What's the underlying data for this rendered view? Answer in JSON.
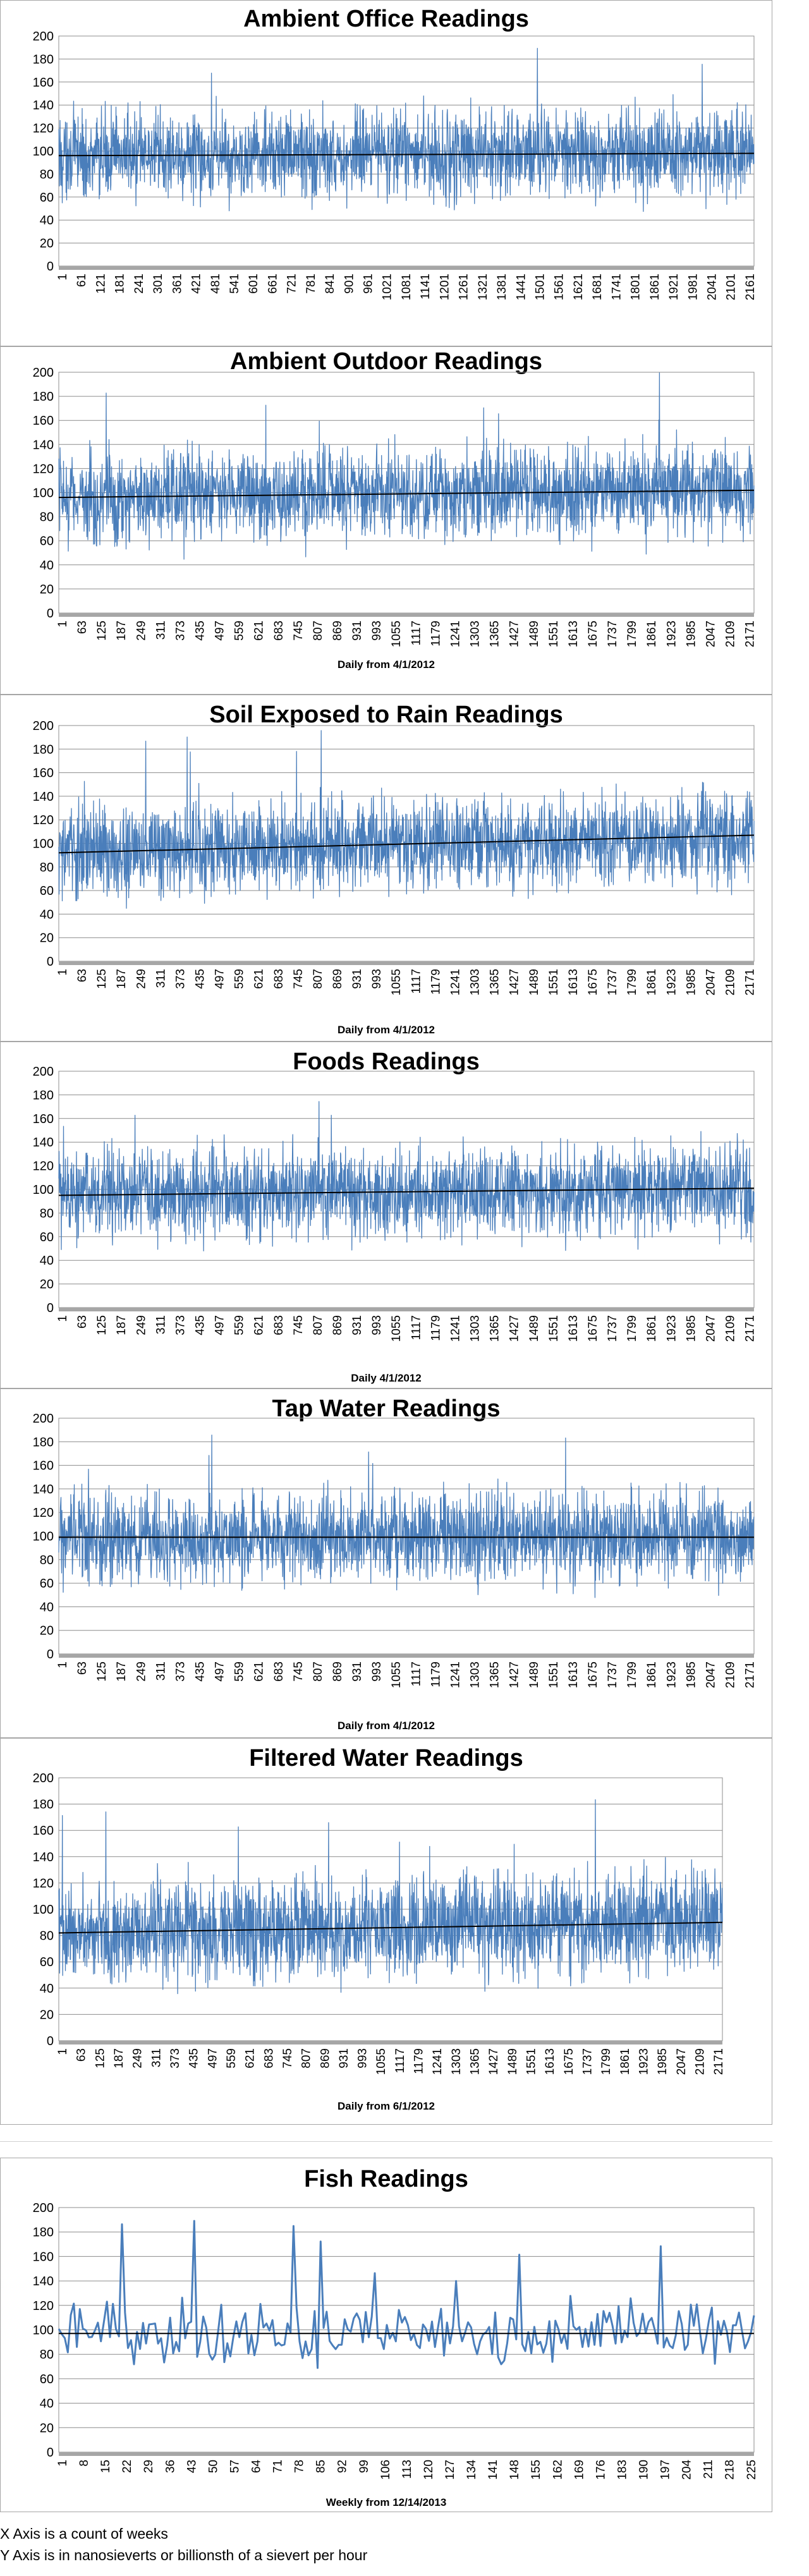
{
  "chart_data": [
    {
      "type": "line",
      "title": "Ambient Office Readings",
      "xlabel": "",
      "ylabel": "",
      "ylim": [
        0,
        200
      ],
      "yticks": [
        0,
        20,
        40,
        60,
        80,
        100,
        120,
        140,
        160,
        180,
        200
      ],
      "x_tick_labels": [
        "1",
        "61",
        "121",
        "181",
        "241",
        "301",
        "361",
        "421",
        "481",
        "541",
        "601",
        "661",
        "721",
        "781",
        "841",
        "901",
        "961",
        "1021",
        "1081",
        "1141",
        "1201",
        "1261",
        "1321",
        "1381",
        "1441",
        "1501",
        "1561",
        "1621",
        "1681",
        "1741",
        "1801",
        "1861",
        "1921",
        "1981",
        "2041",
        "2101",
        "2161"
      ],
      "n_points": 2200,
      "trendline": {
        "start": 96,
        "end": 98
      },
      "series_color": "#4a7ebb",
      "trend_color": "#000000",
      "grid": true,
      "legend": "none"
    },
    {
      "type": "line",
      "title": "Ambient Outdoor Readings",
      "xlabel": "Daily from 4/1/2012",
      "ylabel": "",
      "ylim": [
        0,
        200
      ],
      "yticks": [
        0,
        20,
        40,
        60,
        80,
        100,
        120,
        140,
        160,
        180,
        200
      ],
      "x_tick_labels": [
        "1",
        "63",
        "125",
        "187",
        "249",
        "311",
        "373",
        "435",
        "497",
        "559",
        "621",
        "683",
        "745",
        "807",
        "869",
        "931",
        "993",
        "1055",
        "1117",
        "1179",
        "1241",
        "1303",
        "1365",
        "1427",
        "1489",
        "1551",
        "1613",
        "1675",
        "1737",
        "1799",
        "1861",
        "1923",
        "1985",
        "2047",
        "2109",
        "2171"
      ],
      "n_points": 2200,
      "trendline": {
        "start": 96,
        "end": 102
      },
      "series_color": "#4a7ebb",
      "trend_color": "#000000",
      "grid": true,
      "legend": "none"
    },
    {
      "type": "line",
      "title": "Soil Exposed to Rain Readings",
      "xlabel": "Daily from 4/1/2012",
      "ylabel": "",
      "ylim": [
        0,
        200
      ],
      "yticks": [
        0,
        20,
        40,
        60,
        80,
        100,
        120,
        140,
        160,
        180,
        200
      ],
      "x_tick_labels": [
        "1",
        "63",
        "125",
        "187",
        "249",
        "311",
        "373",
        "435",
        "497",
        "559",
        "621",
        "683",
        "745",
        "807",
        "869",
        "931",
        "993",
        "1055",
        "1117",
        "1179",
        "1241",
        "1303",
        "1365",
        "1427",
        "1489",
        "1551",
        "1613",
        "1675",
        "1737",
        "1799",
        "1861",
        "1923",
        "1985",
        "2047",
        "2109",
        "2171"
      ],
      "n_points": 2200,
      "trendline": {
        "start": 92,
        "end": 107
      },
      "series_color": "#4a7ebb",
      "trend_color": "#000000",
      "grid": true,
      "legend": "none"
    },
    {
      "type": "line",
      "title": "Foods Readings",
      "xlabel": "Daily 4/1/2012",
      "ylabel": "",
      "ylim": [
        0,
        200
      ],
      "yticks": [
        0,
        20,
        40,
        60,
        80,
        100,
        120,
        140,
        160,
        180,
        200
      ],
      "x_tick_labels": [
        "1",
        "63",
        "125",
        "187",
        "249",
        "311",
        "373",
        "435",
        "497",
        "559",
        "621",
        "683",
        "745",
        "807",
        "869",
        "931",
        "993",
        "1055",
        "1117",
        "1179",
        "1241",
        "1303",
        "1365",
        "1427",
        "1489",
        "1551",
        "1613",
        "1675",
        "1737",
        "1799",
        "1861",
        "1923",
        "1985",
        "2047",
        "2109",
        "2171"
      ],
      "n_points": 2200,
      "trendline": {
        "start": 95,
        "end": 101
      },
      "series_color": "#4a7ebb",
      "trend_color": "#000000",
      "grid": true,
      "legend": "none"
    },
    {
      "type": "line",
      "title": "Tap Water Readings",
      "xlabel": "Daily from 4/1/2012",
      "ylabel": "",
      "ylim": [
        0,
        200
      ],
      "yticks": [
        0,
        20,
        40,
        60,
        80,
        100,
        120,
        140,
        160,
        180,
        200
      ],
      "x_tick_labels": [
        "1",
        "63",
        "125",
        "187",
        "249",
        "311",
        "373",
        "435",
        "497",
        "559",
        "621",
        "683",
        "745",
        "807",
        "869",
        "931",
        "993",
        "1055",
        "1117",
        "1179",
        "1241",
        "1303",
        "1365",
        "1427",
        "1489",
        "1551",
        "1613",
        "1675",
        "1737",
        "1799",
        "1861",
        "1923",
        "1985",
        "2047",
        "2109",
        "2171"
      ],
      "n_points": 2200,
      "trendline": {
        "start": 99,
        "end": 99
      },
      "series_color": "#4a7ebb",
      "trend_color": "#000000",
      "grid": true,
      "legend": "none"
    },
    {
      "type": "line",
      "title": "Filtered Water Readings",
      "xlabel": "Daily from 6/1/2012",
      "ylabel": "",
      "ylim": [
        0,
        200
      ],
      "yticks": [
        0,
        20,
        40,
        60,
        80,
        100,
        120,
        140,
        160,
        180,
        200
      ],
      "x_tick_labels": [
        "1",
        "63",
        "125",
        "187",
        "249",
        "311",
        "373",
        "435",
        "497",
        "559",
        "621",
        "683",
        "745",
        "807",
        "869",
        "931",
        "993",
        "1055",
        "1117",
        "1179",
        "1241",
        "1303",
        "1365",
        "1427",
        "1489",
        "1551",
        "1613",
        "1675",
        "1737",
        "1799",
        "1861",
        "1923",
        "1985",
        "2047",
        "2109",
        "2171"
      ],
      "n_points": 2200,
      "trendline": {
        "start": 82,
        "end": 90
      },
      "series_color": "#4a7ebb",
      "trend_color": "#000000",
      "grid": true,
      "legend": "none"
    },
    {
      "type": "line",
      "title": "Fish Readings",
      "xlabel": "Weekly from 12/14/2013",
      "ylabel": "",
      "ylim": [
        0,
        200
      ],
      "yticks": [
        0,
        20,
        40,
        60,
        80,
        100,
        120,
        140,
        160,
        180,
        200
      ],
      "x_tick_labels": [
        "1",
        "8",
        "15",
        "22",
        "29",
        "36",
        "43",
        "50",
        "57",
        "64",
        "71",
        "78",
        "85",
        "92",
        "99",
        "106",
        "113",
        "120",
        "127",
        "134",
        "141",
        "148",
        "155",
        "162",
        "169",
        "176",
        "183",
        "190",
        "197",
        "204",
        "211",
        "218",
        "225"
      ],
      "n_points": 232,
      "trendline": {
        "start": 97,
        "end": 97
      },
      "series_color": "#4a7ebb",
      "trend_color": "#000000",
      "grid": true,
      "legend": "none"
    }
  ],
  "footer": {
    "line1": "X Axis is a count of weeks",
    "line2": "Y Axis is in nanosieverts or billionsth of a sievert per hour"
  }
}
